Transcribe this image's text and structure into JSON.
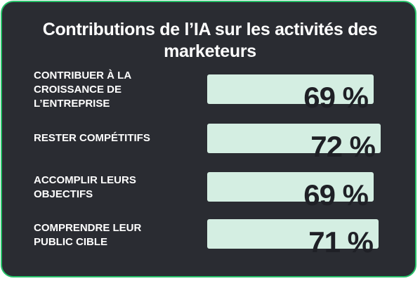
{
  "colors": {
    "background": "#2a2c32",
    "border": "#27c26a",
    "bar": "#d4eee2",
    "value_text": "#1f2026",
    "label_text": "#ffffff"
  },
  "chart_data": {
    "type": "bar",
    "orientation": "horizontal",
    "title_lines": [
      "Contributions de l’IA sur les activités des",
      "marketeurs"
    ],
    "title": "Contributions de l’IA sur les activités des marketeurs",
    "categories": [
      [
        "CONTRIBUER À LA",
        "CROISSANCE DE",
        "L’ENTREPRISE"
      ],
      [
        "RESTER COMPÉTITIFS"
      ],
      [
        "ACCOMPLIR LEURS",
        "OBJECTIFS"
      ],
      [
        "COMPRENDRE LEUR",
        "PUBLIC CIBLE"
      ]
    ],
    "values": [
      69,
      72,
      69,
      71
    ],
    "value_labels": [
      "69 %",
      "72 %",
      "69 %",
      "71 %"
    ],
    "unit": "%",
    "xlim": [
      0,
      100
    ]
  }
}
